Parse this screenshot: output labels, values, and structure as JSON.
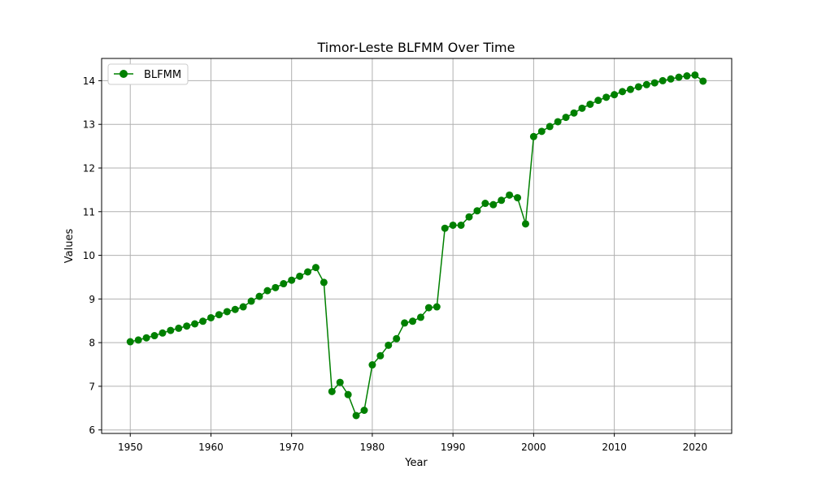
{
  "chart_data": {
    "type": "line",
    "title": "Timor-Leste BLFMM Over Time",
    "xlabel": "Year",
    "ylabel": "Values",
    "xlim": [
      1946.45,
      2024.55
    ],
    "ylim": [
      5.92,
      14.51
    ],
    "xticks": [
      1950,
      1960,
      1970,
      1980,
      1990,
      2000,
      2010,
      2020
    ],
    "yticks": [
      6,
      7,
      8,
      9,
      10,
      11,
      12,
      13,
      14
    ],
    "grid": true,
    "legend": "top-left",
    "colors": {
      "series": "#008000",
      "grid": "#b0b0b0",
      "frame": "#000000"
    },
    "series": [
      {
        "name": "BLFMM",
        "marker": "circle",
        "x": [
          1950,
          1951,
          1952,
          1953,
          1954,
          1955,
          1956,
          1957,
          1958,
          1959,
          1960,
          1961,
          1962,
          1963,
          1964,
          1965,
          1966,
          1967,
          1968,
          1969,
          1970,
          1971,
          1972,
          1973,
          1974,
          1975,
          1976,
          1977,
          1978,
          1979,
          1980,
          1981,
          1982,
          1983,
          1984,
          1985,
          1986,
          1987,
          1988,
          1989,
          1990,
          1991,
          1992,
          1993,
          1994,
          1995,
          1996,
          1997,
          1998,
          1999,
          2000,
          2001,
          2002,
          2003,
          2004,
          2005,
          2006,
          2007,
          2008,
          2009,
          2010,
          2011,
          2012,
          2013,
          2014,
          2015,
          2016,
          2017,
          2018,
          2019,
          2020,
          2021
        ],
        "values": [
          8.02,
          8.06,
          8.11,
          8.16,
          8.22,
          8.28,
          8.33,
          8.38,
          8.43,
          8.49,
          8.57,
          8.64,
          8.71,
          8.76,
          8.82,
          8.95,
          9.06,
          9.19,
          9.26,
          9.35,
          9.43,
          9.52,
          9.62,
          9.72,
          9.38,
          6.88,
          7.09,
          6.81,
          6.33,
          6.45,
          7.49,
          7.7,
          7.94,
          8.09,
          8.45,
          8.49,
          8.58,
          8.8,
          8.82,
          10.62,
          10.69,
          10.69,
          10.88,
          11.02,
          11.19,
          11.16,
          11.26,
          11.38,
          11.32,
          10.72,
          12.72,
          12.84,
          12.95,
          13.06,
          13.16,
          13.26,
          13.37,
          13.46,
          13.55,
          13.62,
          13.68,
          13.75,
          13.8,
          13.86,
          13.91,
          13.95,
          14.0,
          14.04,
          14.08,
          14.11,
          14.13,
          13.99
        ]
      }
    ]
  }
}
